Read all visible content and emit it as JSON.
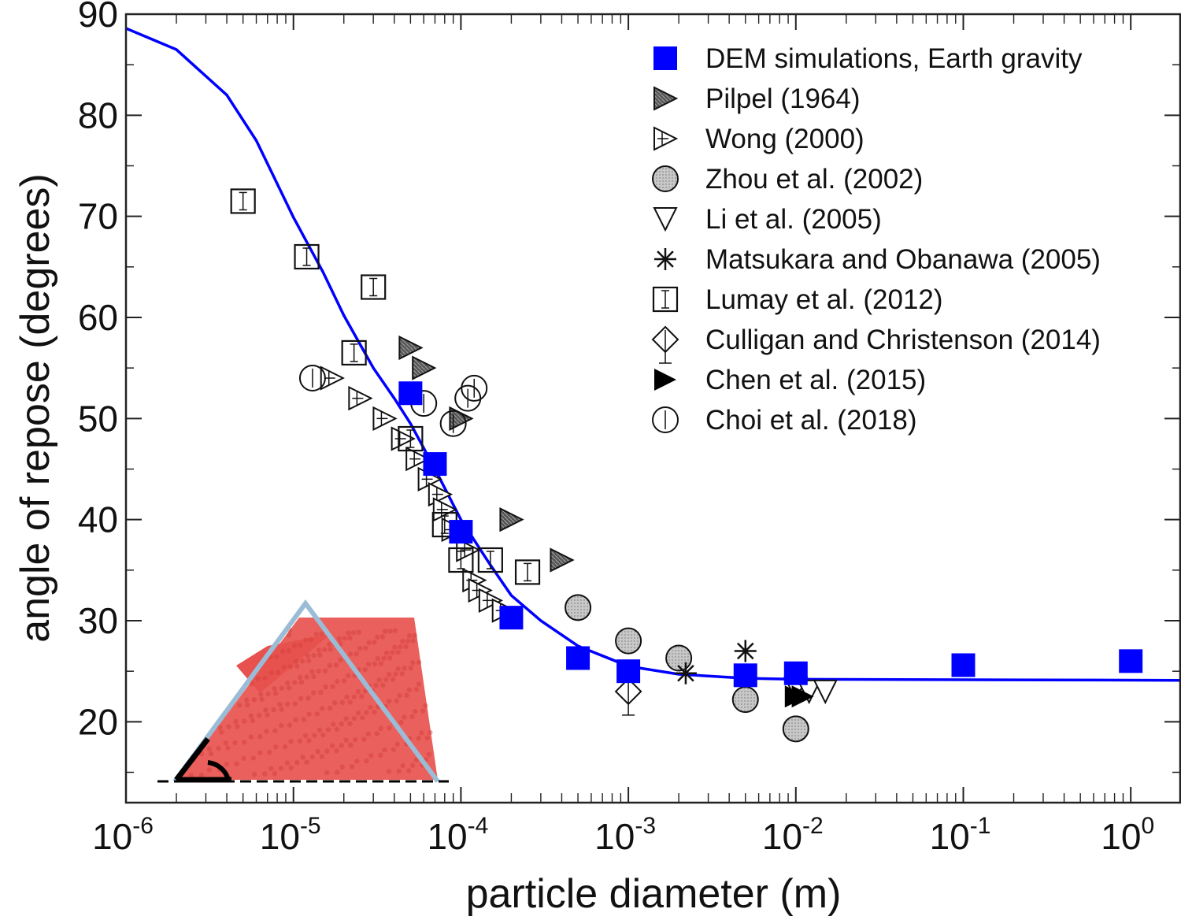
{
  "chart_data": {
    "type": "scatter",
    "xlabel": "particle diameter (m)",
    "ylabel": "angle of repose (degrees)",
    "x_scale": "log",
    "xlim": [
      1e-06,
      2
    ],
    "ylim": [
      12,
      90
    ],
    "x_ticks": [
      {
        "value": 1e-06,
        "base": "10",
        "exp": "-6"
      },
      {
        "value": 1e-05,
        "base": "10",
        "exp": "-5"
      },
      {
        "value": 0.0001,
        "base": "10",
        "exp": "-4"
      },
      {
        "value": 0.001,
        "base": "10",
        "exp": "-3"
      },
      {
        "value": 0.01,
        "base": "10",
        "exp": "-2"
      },
      {
        "value": 0.1,
        "base": "10",
        "exp": "-1"
      },
      {
        "value": 1,
        "base": "10",
        "exp": "0"
      }
    ],
    "y_ticks": [
      20,
      30,
      40,
      50,
      60,
      70,
      80,
      90
    ],
    "grid": false,
    "legend_position": "top-right",
    "fit_curve": {
      "color": "#0000ff",
      "points": [
        [
          1e-06,
          88.6
        ],
        [
          2e-06,
          86.5
        ],
        [
          4e-06,
          82.0
        ],
        [
          6e-06,
          77.5
        ],
        [
          1e-05,
          69.9
        ],
        [
          1.5e-05,
          64.5
        ],
        [
          2e-05,
          60.2
        ],
        [
          3e-05,
          55.0
        ],
        [
          4e-05,
          52.0
        ],
        [
          5e-05,
          49.5
        ],
        [
          7e-05,
          45.0
        ],
        [
          0.0001,
          40.0
        ],
        [
          0.00015,
          35.5
        ],
        [
          0.0002,
          32.5
        ],
        [
          0.0003,
          30.0
        ],
        [
          0.0005,
          27.5
        ],
        [
          0.001,
          25.5
        ],
        [
          0.002,
          24.7
        ],
        [
          0.005,
          24.3
        ],
        [
          0.01,
          24.2
        ],
        [
          2,
          24.1
        ]
      ]
    },
    "series": [
      {
        "name": "DEM simulations, Earth gravity",
        "marker": "filled-square",
        "color": "#0000ff",
        "points": [
          [
            5e-05,
            52.5
          ],
          [
            7e-05,
            45.5
          ],
          [
            0.0001,
            38.8
          ],
          [
            0.0002,
            30.3
          ],
          [
            0.0005,
            26.3
          ],
          [
            0.001,
            25.0
          ],
          [
            0.005,
            24.6
          ],
          [
            0.01,
            24.8
          ],
          [
            0.1,
            25.6
          ],
          [
            1,
            26.0
          ]
        ]
      },
      {
        "name": "Pilpel (1964)",
        "marker": "hatched-right-triangle",
        "color": "#333333",
        "points": [
          [
            5e-05,
            57.0
          ],
          [
            6e-05,
            55.0
          ],
          [
            0.0001,
            50.0
          ],
          [
            0.0002,
            40.0
          ],
          [
            0.0004,
            36.0
          ]
        ]
      },
      {
        "name": "Wong (2000)",
        "marker": "open-right-triangle",
        "color": "#000000",
        "points": [
          [
            1.7e-05,
            54.0
          ],
          [
            2.5e-05,
            52.0
          ],
          [
            3.5e-05,
            50.0
          ],
          [
            4.5e-05,
            48.0
          ],
          [
            5.5e-05,
            46.0
          ],
          [
            6.5e-05,
            44.0
          ],
          [
            7.5e-05,
            42.5
          ],
          [
            8e-05,
            41.0
          ],
          [
            9e-05,
            39.0
          ],
          [
            0.00011,
            37.0
          ],
          [
            0.00012,
            34.0
          ],
          [
            0.00013,
            33.0
          ],
          [
            0.00015,
            32.0
          ],
          [
            0.00018,
            31.0
          ]
        ]
      },
      {
        "name": "Zhou et al. (2002)",
        "marker": "gray-circle",
        "color": "#b4b4b4",
        "points": [
          [
            0.0005,
            31.3
          ],
          [
            0.001,
            28.0
          ],
          [
            0.002,
            26.3
          ],
          [
            0.005,
            22.2
          ],
          [
            0.01,
            19.3
          ]
        ]
      },
      {
        "name": "Li et al. (2005)",
        "marker": "open-down-triangle",
        "color": "#000000",
        "points": [
          [
            0.01,
            23.3
          ],
          [
            0.012,
            23.0
          ],
          [
            0.015,
            23.0
          ]
        ]
      },
      {
        "name": "Matsukara and Obanawa (2005)",
        "marker": "star",
        "color": "#000000",
        "points": [
          [
            0.0022,
            24.8
          ],
          [
            0.005,
            27.0
          ]
        ]
      },
      {
        "name": "Lumay et al. (2012)",
        "marker": "open-square",
        "color": "#000000",
        "points": [
          [
            5e-06,
            71.5
          ],
          [
            1.2e-05,
            66.0
          ],
          [
            3e-05,
            63.0
          ],
          [
            2.3e-05,
            56.5
          ],
          [
            5e-05,
            48.0
          ],
          [
            8e-05,
            39.5
          ],
          [
            0.0001,
            36.0
          ],
          [
            0.00015,
            36.0
          ],
          [
            0.00025,
            34.8
          ]
        ]
      },
      {
        "name": "Culligan and Christenson (2014)",
        "marker": "open-diamond",
        "color": "#000000",
        "points": [
          [
            0.001,
            23.0
          ]
        ]
      },
      {
        "name": "Chen et al. (2015)",
        "marker": "filled-right-triangle",
        "color": "#000000",
        "points": [
          [
            0.01,
            22.5
          ],
          [
            0.011,
            22.5
          ]
        ]
      },
      {
        "name": "Choi et al. (2018)",
        "marker": "open-circle",
        "color": "#000000",
        "points": [
          [
            1.3e-05,
            54.0
          ],
          [
            6e-05,
            51.5
          ],
          [
            9e-05,
            49.5
          ],
          [
            0.00011,
            52.0
          ],
          [
            0.00012,
            53.0
          ]
        ]
      }
    ],
    "inset": {
      "type": "pile-illustration",
      "pile_color": "#e8524e",
      "outline_color": "#9bbcd6"
    }
  }
}
